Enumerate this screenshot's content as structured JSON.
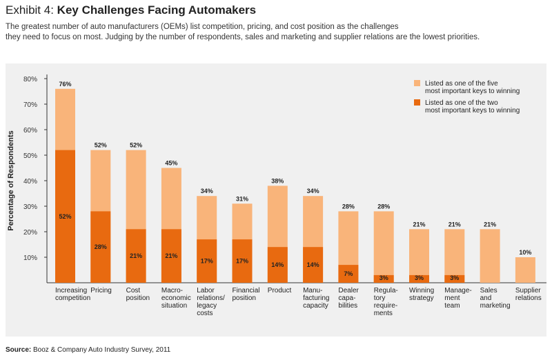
{
  "header": {
    "exhibit_label": "Exhibit 4:",
    "title": "Key Challenges Facing Automakers",
    "subtitle_line1": "The greatest number of auto manufacturers (OEMs) list competition, pricing, and cost position as the challenges",
    "subtitle_line2": "they need to focus on most. Judging by the number of respondents, sales and marketing and supplier relations are the lowest priorities."
  },
  "footer": {
    "source_label": "Source:",
    "source_text": "Booz & Company Auto Industry Survey, 2011"
  },
  "colors": {
    "five_keys": "#f9b47a",
    "two_keys": "#e86a10",
    "panel_bg": "#f0f0f0",
    "axis": "#333333"
  },
  "chart_data": {
    "type": "bar",
    "ylabel": "Percentage of Respondents",
    "ylim": [
      0,
      80
    ],
    "yticks": [
      "10%",
      "20%",
      "30%",
      "40%",
      "50%",
      "60%",
      "70%",
      "80%"
    ],
    "categories": [
      [
        "Increasing",
        "competition"
      ],
      [
        "Pricing"
      ],
      [
        "Cost",
        "position"
      ],
      [
        "Macro-",
        "economic",
        "situation"
      ],
      [
        "Labor",
        "relations/",
        "legacy",
        "costs"
      ],
      [
        "Financial",
        "position"
      ],
      [
        "Product"
      ],
      [
        "Manu-",
        "facturing",
        "capacity"
      ],
      [
        "Dealer",
        "capa-",
        "bilities"
      ],
      [
        "Regula-",
        "tory",
        "require-",
        "ments"
      ],
      [
        "Winning",
        "strategy"
      ],
      [
        "Manage-",
        "ment",
        "team"
      ],
      [
        "Sales",
        "and",
        "marketing"
      ],
      [
        "Supplier",
        "relations"
      ]
    ],
    "series": [
      {
        "name": "Listed as one of the five most important keys to winning",
        "legend_lines": [
          "Listed as one of the five",
          "most important keys to winning"
        ],
        "values": [
          76,
          52,
          52,
          45,
          34,
          31,
          38,
          34,
          28,
          28,
          21,
          21,
          21,
          10
        ],
        "labels": [
          "76%",
          "52%",
          "52%",
          "45%",
          "34%",
          "31%",
          "38%",
          "34%",
          "28%",
          "28%",
          "21%",
          "21%",
          "21%",
          "10%"
        ]
      },
      {
        "name": "Listed as one of the two most important keys to winning",
        "legend_lines": [
          "Listed as one of the two",
          "most important keys to winning"
        ],
        "values": [
          52,
          28,
          21,
          21,
          17,
          17,
          14,
          14,
          7,
          3,
          3,
          3,
          null,
          null
        ],
        "labels": [
          "52%",
          "28%",
          "21%",
          "21%",
          "17%",
          "17%",
          "14%",
          "14%",
          "7%",
          "3%",
          "3%",
          "3%",
          "",
          ""
        ]
      }
    ],
    "grid": false,
    "legend_position": "top-right"
  }
}
